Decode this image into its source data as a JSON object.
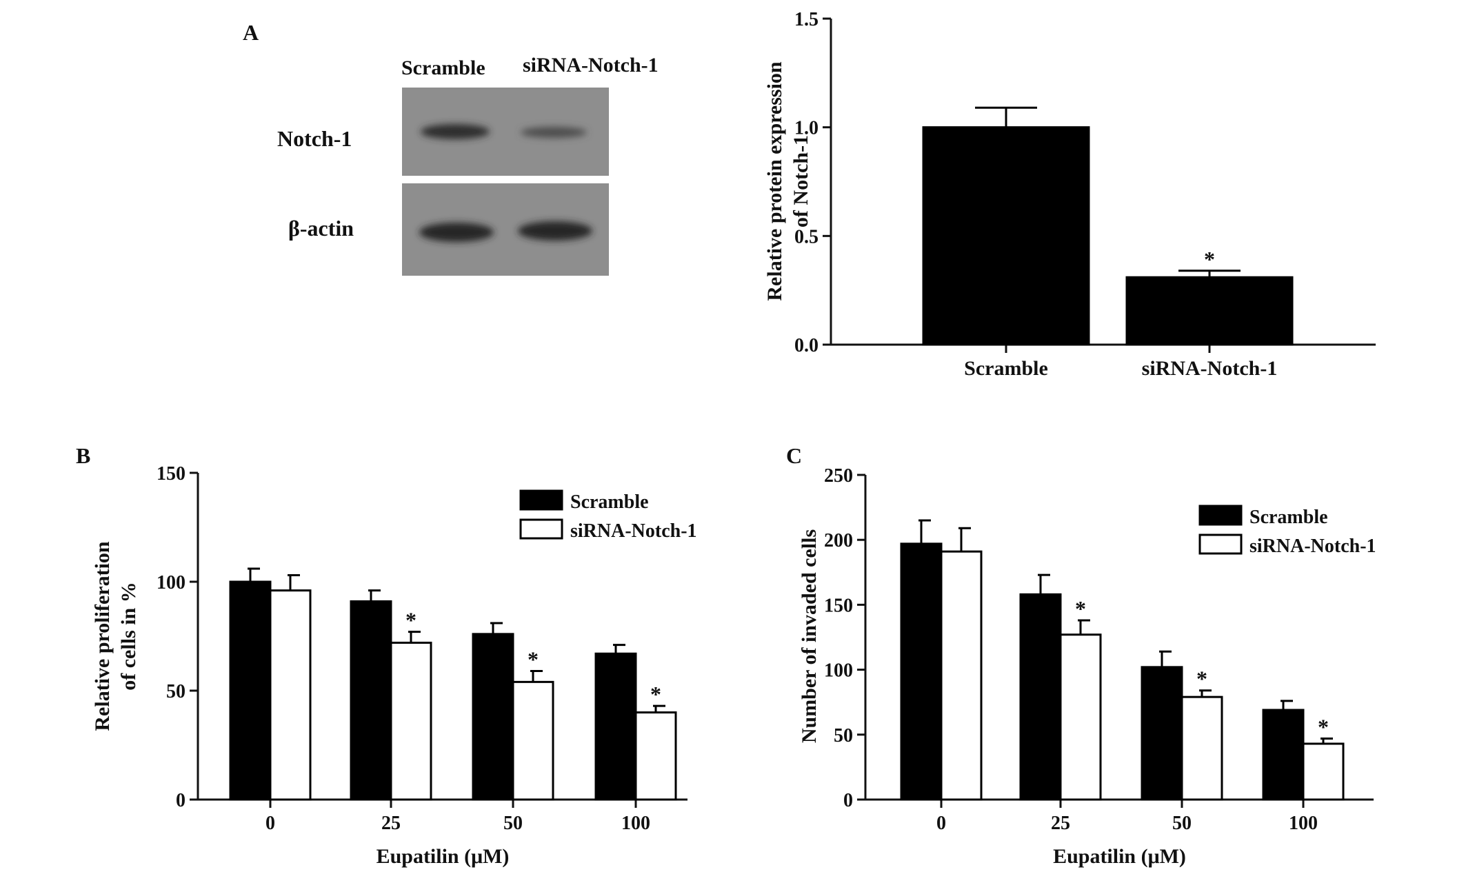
{
  "panels": {
    "A": "A",
    "B": "B",
    "C": "C"
  },
  "blot": {
    "lane_labels": [
      "Scramble",
      "siRNA-Notch-1"
    ],
    "row_labels": [
      "Notch-1",
      "β-actin"
    ]
  },
  "chart_data": [
    {
      "id": "A-bar",
      "type": "bar",
      "categories": [
        "Scramble",
        "siRNA-Notch-1"
      ],
      "series": [
        {
          "values": [
            1.0,
            0.31
          ],
          "errors": [
            0.09,
            0.03
          ],
          "significance": [
            "",
            "*"
          ]
        }
      ],
      "ylabel": [
        "Relative protein expression",
        "of Notch-1"
      ],
      "xlabel": "",
      "ylim": [
        0,
        1.5
      ],
      "yticks": [
        0.0,
        0.5,
        1.0,
        1.5
      ],
      "ytick_labels": [
        "0.0",
        "0.5",
        "1.0",
        "1.5"
      ]
    },
    {
      "id": "B-bar",
      "type": "bar",
      "categories": [
        "0",
        "25",
        "50",
        "100"
      ],
      "series": [
        {
          "name": "Scramble",
          "values": [
            100,
            91,
            76,
            67
          ],
          "errors": [
            6,
            5,
            5,
            4
          ],
          "significance": [
            "",
            "",
            "",
            ""
          ]
        },
        {
          "name": "siRNA-Notch-1",
          "values": [
            96,
            72,
            54,
            40
          ],
          "errors": [
            7,
            5,
            5,
            3
          ],
          "significance": [
            "",
            "*",
            "*",
            "*"
          ]
        }
      ],
      "xlabel": "Eupatilin (μM)",
      "ylabel": [
        "Relative proliferation",
        "of cells in %"
      ],
      "ylim": [
        0,
        150
      ],
      "yticks": [
        0,
        50,
        100,
        150
      ],
      "ytick_labels": [
        "0",
        "50",
        "100",
        "150"
      ],
      "legend": "top-right"
    },
    {
      "id": "C-bar",
      "type": "bar",
      "categories": [
        "0",
        "25",
        "50",
        "100"
      ],
      "series": [
        {
          "name": "Scramble",
          "values": [
            197,
            158,
            102,
            69
          ],
          "errors": [
            18,
            15,
            12,
            7
          ],
          "significance": [
            "",
            "",
            "",
            ""
          ]
        },
        {
          "name": "siRNA-Notch-1",
          "values": [
            191,
            127,
            79,
            43
          ],
          "errors": [
            18,
            11,
            5,
            4
          ],
          "significance": [
            "",
            "*",
            "*",
            "*"
          ]
        }
      ],
      "xlabel": "Eupatilin (μM)",
      "ylabel": [
        "Number of invaded cells"
      ],
      "ylim": [
        0,
        250
      ],
      "yticks": [
        0,
        50,
        100,
        150,
        200,
        250
      ],
      "ytick_labels": [
        "0",
        "50",
        "100",
        "150",
        "200",
        "250"
      ],
      "legend": "top-right"
    }
  ]
}
